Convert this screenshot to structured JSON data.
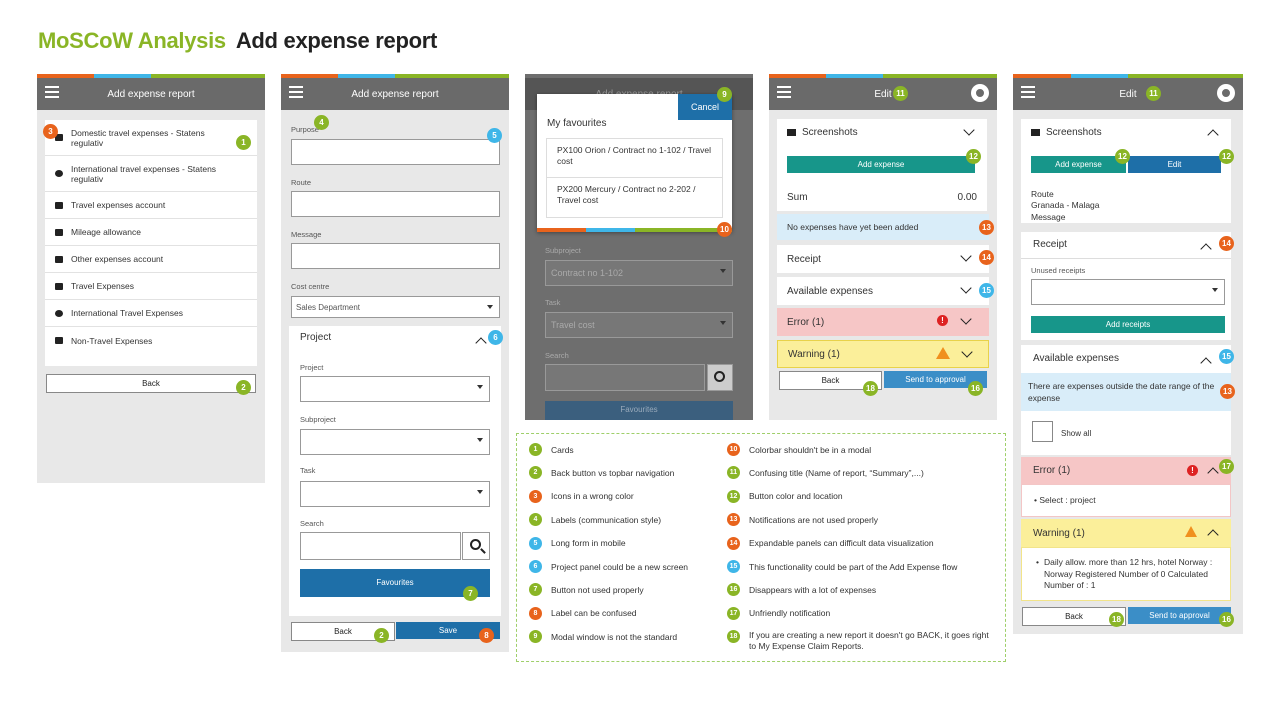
{
  "header": {
    "title_accent": "MoSCoW Analysis",
    "title_main": "Add expense report"
  },
  "colors": {
    "accent": "#8ab526",
    "orange": "#e8631c",
    "blue": "#3fb6e8",
    "topbar": "#6a6a6a",
    "primary_button": "#1e6fa8",
    "teal_button": "#17968a"
  },
  "screen1": {
    "title": "Add expense report",
    "items": [
      "Domestic travel expenses - Statens regulativ",
      "International travel expenses - Statens regulativ",
      "Travel expenses account",
      "Mileage allowance",
      "Other expenses account",
      "Travel Expenses",
      "International Travel Expenses",
      "Non-Travel Expenses"
    ],
    "back": "Back",
    "badges": [
      "3",
      "1",
      "2"
    ]
  },
  "screen2": {
    "title": "Add expense report",
    "purpose": "Purpose",
    "route": "Route",
    "message": "Message",
    "cost_centre": "Cost centre",
    "cost_centre_value": "Sales Department",
    "project_panel": "Project",
    "project": "Project",
    "subproject": "Subproject",
    "task": "Task",
    "search": "Search",
    "favourites": "Favourites",
    "back": "Back",
    "save": "Save",
    "badges": [
      "4",
      "5",
      "6",
      "7",
      "2",
      "8"
    ]
  },
  "screen3": {
    "cancel": "Cancel",
    "heading": "My favourites",
    "fav1": "PX100 Orion / Contract no 1-102 / Travel cost",
    "fav2": "PX200 Mercury / Contract no 2-202 / Travel cost",
    "bg_title": "Add expense report",
    "subproject": "Subproject",
    "subproject_value": "Contract no 1-102",
    "task": "Task",
    "task_value": "Travel cost",
    "search": "Search",
    "favourites": "Favourites",
    "badges": [
      "9",
      "10"
    ]
  },
  "screen4": {
    "title": "Edit",
    "screenshots": "Screenshots",
    "add_expense": "Add expense",
    "sum_label": "Sum",
    "sum_value": "0.00",
    "notice": "No expenses have yet been added",
    "receipt": "Receipt",
    "available": "Available expenses",
    "error": "Error (1)",
    "warning": "Warning (1)",
    "back": "Back",
    "send": "Send to approval",
    "badges": [
      "11",
      "12",
      "13",
      "14",
      "15",
      "18",
      "16"
    ]
  },
  "screen5": {
    "title": "Edit",
    "screenshots": "Screenshots",
    "add_expense": "Add expense",
    "edit": "Edit",
    "route_label": "Route",
    "route_value": "Granada - Malaga",
    "message": "Message",
    "receipt": "Receipt",
    "unused": "Unused receipts",
    "add_receipts": "Add receipts",
    "available": "Available expenses",
    "notice": "There are expenses outside the date range of the expense",
    "show_all": "Show all",
    "error": "Error (1)",
    "error_item": "Select : project",
    "warning": "Warning (1)",
    "warning_item": "Daily allow. more than 12 hrs, hotel Norway : Norway Registered Number of 0 Calculated Number of : 1",
    "back": "Back",
    "send": "Send to approval",
    "badges": [
      "11",
      "12",
      "12",
      "14",
      "15",
      "13",
      "17",
      "18",
      "16"
    ]
  },
  "legend": [
    {
      "n": "1",
      "t": "Cards",
      "c": "g"
    },
    {
      "n": "2",
      "t": "Back button vs topbar navigation",
      "c": "g"
    },
    {
      "n": "3",
      "t": "Icons in a wrong color",
      "c": "o"
    },
    {
      "n": "4",
      "t": "Labels (communication style)",
      "c": "g"
    },
    {
      "n": "5",
      "t": "Long form in mobile",
      "c": "b"
    },
    {
      "n": "6",
      "t": "Project panel could be a new screen",
      "c": "b"
    },
    {
      "n": "7",
      "t": "Button not used properly",
      "c": "g"
    },
    {
      "n": "8",
      "t": "Label can be confused",
      "c": "o"
    },
    {
      "n": "9",
      "t": "Modal window is not the standard",
      "c": "g"
    },
    {
      "n": "10",
      "t": "Colorbar shouldn't be in a modal",
      "c": "o"
    },
    {
      "n": "11",
      "t": "Confusing title (Name of report, “Summary”,...)",
      "c": "g"
    },
    {
      "n": "12",
      "t": "Button color and location",
      "c": "g"
    },
    {
      "n": "13",
      "t": "Notifications are not used properly",
      "c": "o"
    },
    {
      "n": "14",
      "t": "Expandable panels can difficult data visualization",
      "c": "o"
    },
    {
      "n": "15",
      "t": "This functionality could be part of the Add Expense flow",
      "c": "b"
    },
    {
      "n": "16",
      "t": "Disappears with a lot of expenses",
      "c": "g"
    },
    {
      "n": "17",
      "t": "Unfriendly notification",
      "c": "g"
    },
    {
      "n": "18",
      "t": "If you are creating a new report it doesn't go BACK, it goes right to My Expense Claim Reports.",
      "c": "g"
    }
  ]
}
